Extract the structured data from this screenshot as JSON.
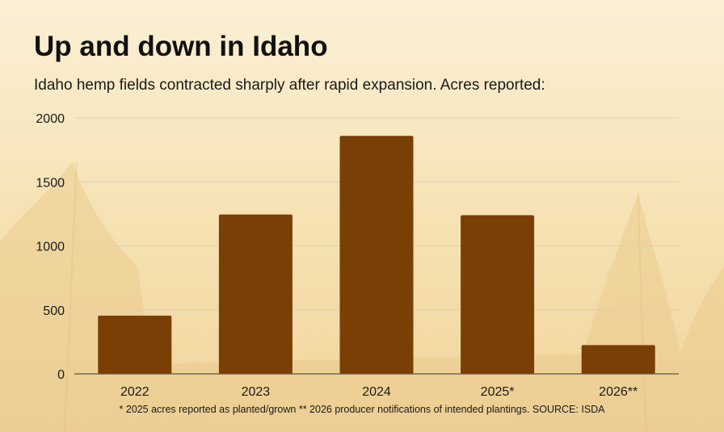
{
  "title": "Up and down in Idaho",
  "subtitle": "Idaho hemp fields contracted sharply after rapid expansion. Acres reported:",
  "footnote": "* 2025 acres reported as planted/grown ** 2026 producer notifications of intended plantings. SOURCE: ISDA",
  "colors": {
    "bar": "#7a3f05",
    "background": "#f7e6bd",
    "grid": "#d9cfc0",
    "axis": "#555555"
  },
  "chart_data": {
    "type": "bar",
    "categories": [
      "2022",
      "2023",
      "2024",
      "2025*",
      "2026**"
    ],
    "values": [
      455,
      1245,
      1860,
      1240,
      225
    ],
    "ylim": [
      0,
      2000
    ],
    "yticks": [
      "0",
      "500",
      "1000",
      "1500",
      "2000"
    ],
    "grid": true
  }
}
